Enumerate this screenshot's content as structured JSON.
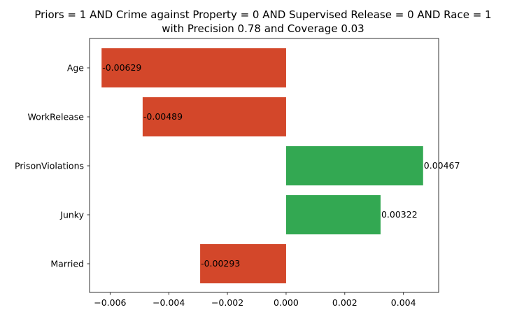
{
  "chart_data": {
    "type": "bar",
    "orientation": "horizontal",
    "title_lines": [
      "Priors = 1 AND Crime against Property = 0 AND Supervised Release = 0 AND Race = 1",
      "with Precision 0.78 and Coverage 0.03"
    ],
    "categories": [
      "Age",
      "WorkRelease",
      "PrisonViolations",
      "Junky",
      "Married"
    ],
    "values": [
      -0.00629,
      -0.00489,
      0.00467,
      0.00322,
      -0.00293
    ],
    "value_labels": [
      "-0.00629",
      "-0.00489",
      "0.00467",
      "0.00322",
      "-0.00293"
    ],
    "xlim": [
      -0.0067,
      0.0052
    ],
    "xticks": [
      -0.006,
      -0.004,
      -0.002,
      0.0,
      0.002,
      0.004
    ],
    "xtick_labels": [
      "−0.006",
      "−0.004",
      "−0.002",
      "0.000",
      "0.002",
      "0.004"
    ],
    "xlabel": "",
    "ylabel": "",
    "grid": false,
    "legend": "none",
    "colors": {
      "negative": "#d3472a",
      "positive": "#33a852",
      "axis": "#000000"
    }
  }
}
